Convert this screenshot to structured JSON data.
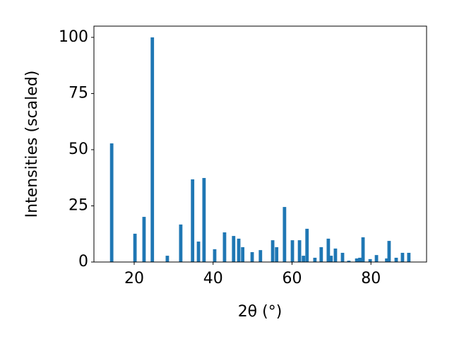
{
  "chart_data": {
    "type": "bar",
    "xlabel": "2θ (°)",
    "ylabel": "Intensities (scaled)",
    "color": "#1f77b4",
    "x": [
      14.3,
      20.2,
      22.5,
      24.6,
      28.4,
      31.8,
      34.8,
      36.3,
      37.7,
      40.4,
      42.9,
      45.2,
      46.5,
      47.5,
      49.9,
      52.0,
      55.1,
      56.1,
      58.1,
      60.1,
      61.9,
      62.9,
      63.8,
      65.8,
      67.4,
      69.2,
      69.9,
      71.0,
      72.8,
      74.4,
      76.4,
      77.2,
      78.0,
      79.8,
      81.4,
      84.0,
      84.6,
      86.4,
      88.0,
      89.6
    ],
    "values": [
      52.8,
      12.6,
      20.1,
      100,
      2.8,
      16.7,
      36.8,
      9.1,
      37.4,
      5.7,
      13.2,
      11.6,
      10.4,
      6.6,
      4.4,
      5.3,
      9.7,
      6.6,
      24.5,
      9.7,
      9.7,
      2.8,
      14.8,
      1.9,
      6.6,
      10.4,
      2.8,
      6.0,
      4.1,
      0.6,
      1.6,
      1.9,
      11.0,
      1.3,
      3.1,
      1.6,
      9.4,
      1.9,
      4.1,
      4.1
    ],
    "xlim": [
      9.8,
      94.1
    ],
    "ylim": [
      0,
      105
    ],
    "xticks": [
      20,
      40,
      60,
      80
    ],
    "yticks": [
      0,
      25,
      50,
      75,
      100
    ]
  }
}
